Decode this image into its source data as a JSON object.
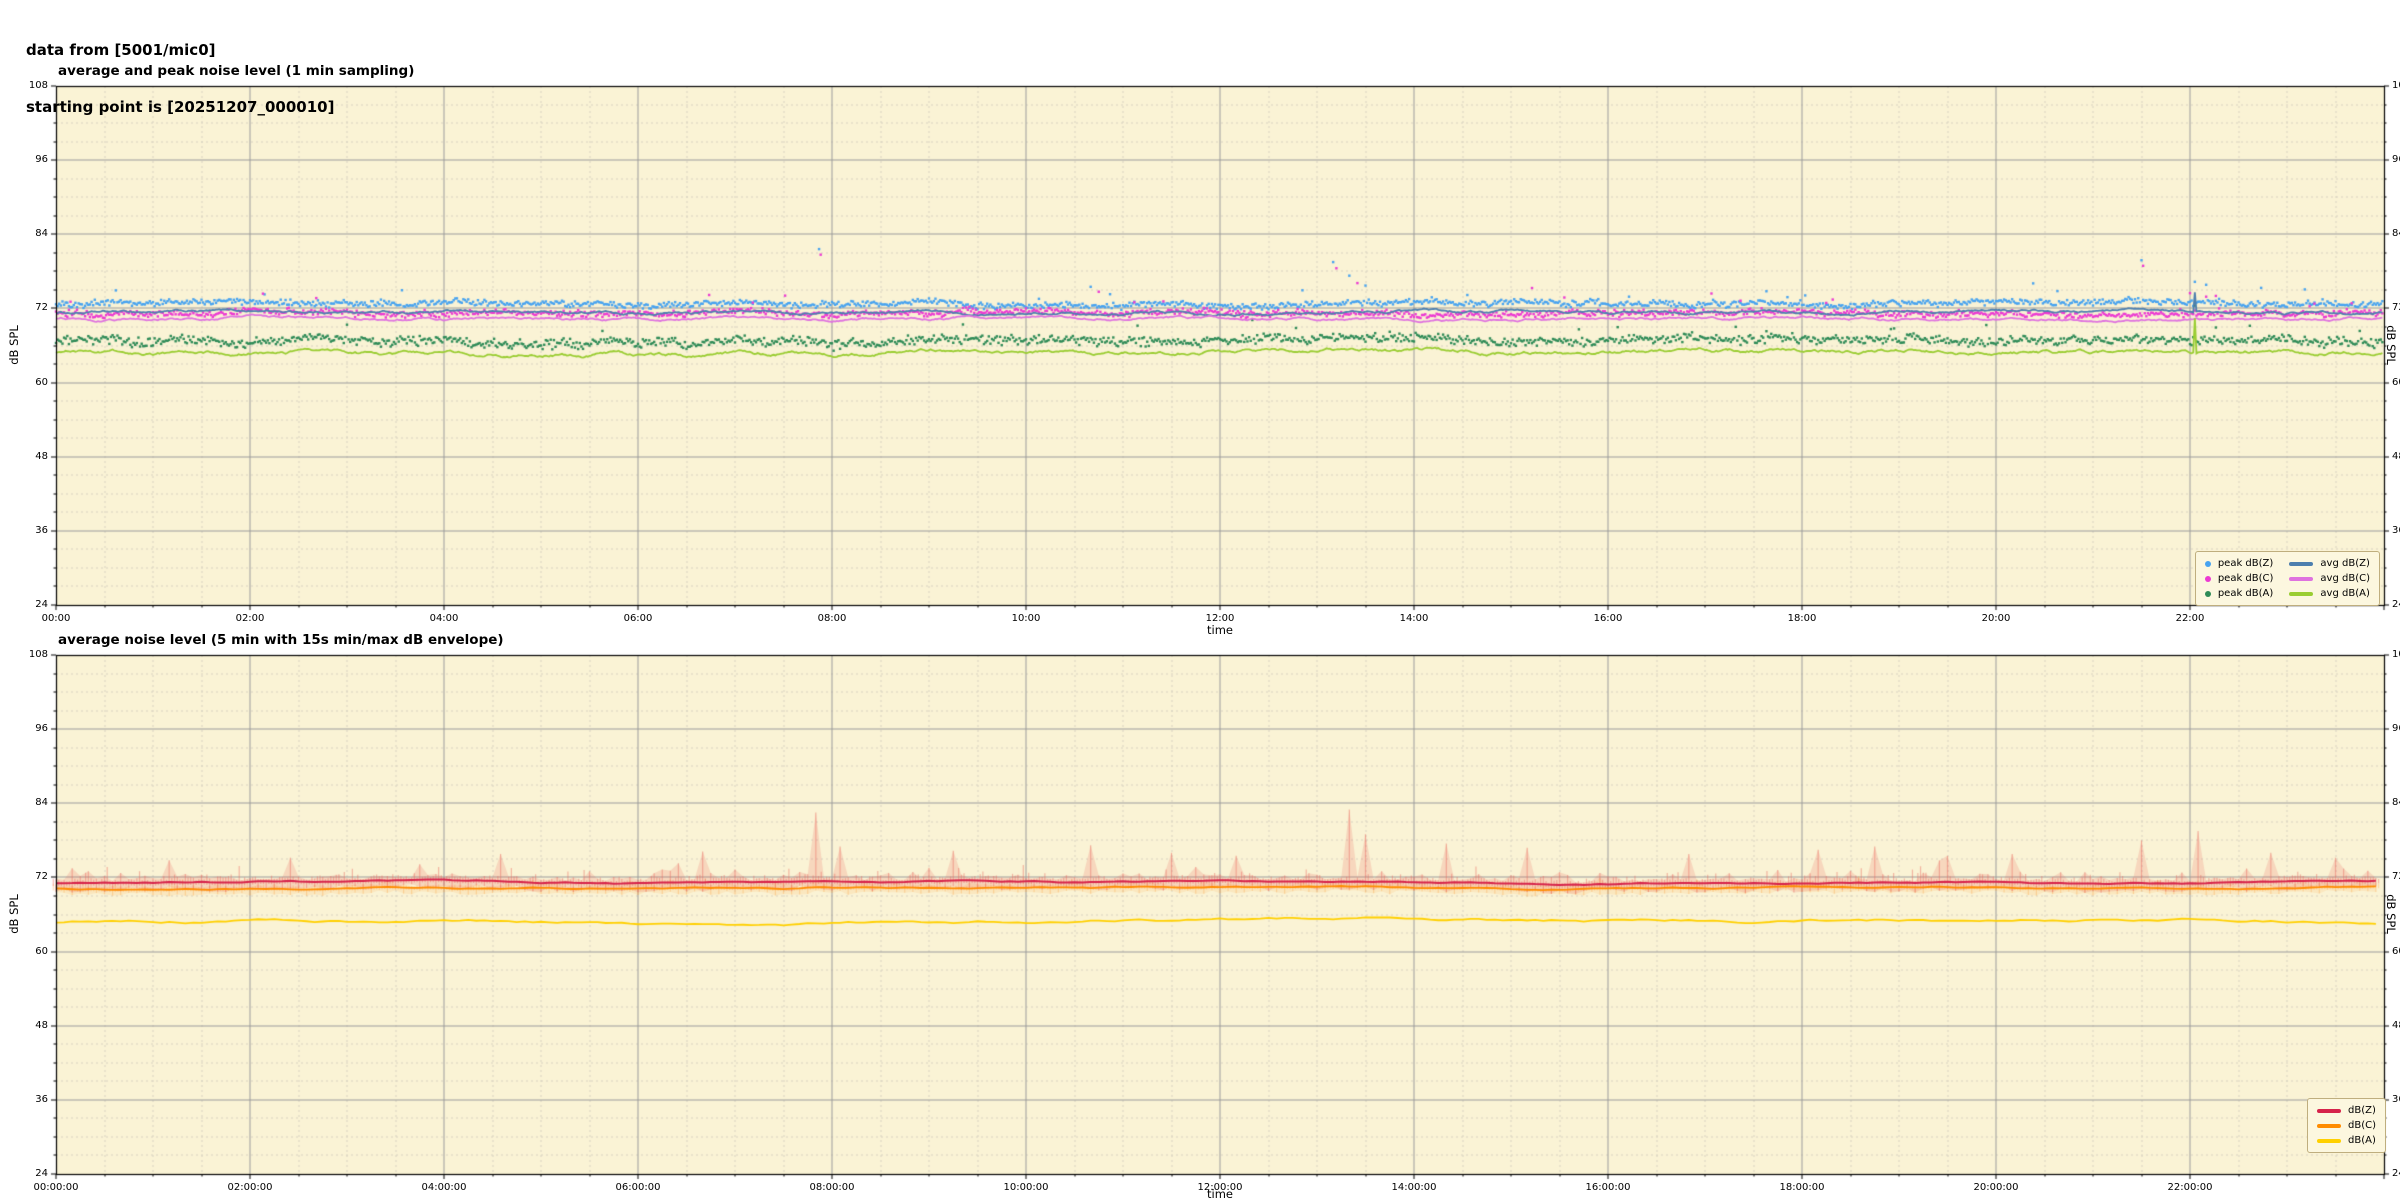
{
  "header": {
    "line1": "data from [5001/mic0]",
    "line2": "starting point is [20251207_000010]"
  },
  "colors": {
    "plot_bg": "#faf3d5",
    "grid_major": "#9b9b9b",
    "grid_minor": "#d8d2c1",
    "axis": "#000000",
    "legend_bg": "#fcf7df",
    "legend_border": "#bfae7e"
  },
  "chart_data": [
    {
      "type": "scatter+line",
      "title": "average and peak noise level (1 min sampling)",
      "xlabel": "time",
      "ylabel_left": "dB SPL",
      "ylabel_right": "dB SPL",
      "xlim_hours": [
        0,
        24
      ],
      "ylim": [
        24,
        108
      ],
      "yticks": [
        24,
        36,
        48,
        60,
        72,
        84,
        96,
        108
      ],
      "ytick_minor_step": 3,
      "xtick_hours": [
        0,
        2,
        4,
        6,
        8,
        10,
        12,
        14,
        16,
        18,
        20,
        22
      ],
      "xtick_labels": [
        "00:00",
        "02:00",
        "04:00",
        "06:00",
        "08:00",
        "10:00",
        "12:00",
        "14:00",
        "16:00",
        "18:00",
        "20:00",
        "22:00"
      ],
      "xtick_minor_minutes": 30,
      "sampling_minutes": 1,
      "grid": "major-solid, minor-dashed",
      "legend_position": "lower right",
      "anchor_hours": [
        0,
        2,
        4,
        6,
        8,
        10,
        12,
        14,
        16,
        18,
        20,
        22,
        24
      ],
      "series": [
        {
          "name": "avg dB(Z)",
          "style": "line",
          "color": "#4d7fae",
          "width": 1.8,
          "wander": 0.22,
          "anchors_db": [
            71.3,
            71.5,
            71.4,
            71.3,
            71.4,
            71.5,
            71.4,
            71.4,
            71.3,
            71.4,
            71.5,
            71.3,
            71.4
          ]
        },
        {
          "name": "avg dB(C)",
          "style": "line",
          "color": "#df72df",
          "width": 1.8,
          "wander": 0.22,
          "anchors_db": [
            70.2,
            70.4,
            70.3,
            70.2,
            70.3,
            70.4,
            70.3,
            70.3,
            70.2,
            70.3,
            70.4,
            70.2,
            70.3
          ]
        },
        {
          "name": "avg dB(A)",
          "style": "line",
          "color": "#9acd32",
          "width": 1.8,
          "wander": 0.3,
          "anchors_db": [
            64.7,
            64.9,
            64.6,
            64.4,
            64.8,
            65.0,
            65.1,
            65.2,
            65.0,
            65.1,
            65.0,
            64.8,
            64.9
          ]
        },
        {
          "name": "peak dB(Z)",
          "style": "scatter",
          "color": "#47a3f0",
          "follows": "avg dB(Z)",
          "offset_db": 1.4,
          "jitter_db": 0.6
        },
        {
          "name": "peak dB(C)",
          "style": "scatter",
          "color": "#ec3ad2",
          "follows": "avg dB(C)",
          "offset_db": 0.9,
          "jitter_db": 0.6
        },
        {
          "name": "peak dB(A)",
          "style": "scatter",
          "color": "#2e8b57",
          "follows": "avg dB(A)",
          "offset_db": 1.9,
          "jitter_db": 0.9
        }
      ],
      "outliers": [
        {
          "series": "peak dB(Z)",
          "time": "07:52",
          "db": 81.6
        },
        {
          "series": "peak dB(C)",
          "time": "07:53",
          "db": 80.7
        },
        {
          "series": "peak dB(Z)",
          "time": "10:40",
          "db": 75.5
        },
        {
          "series": "peak dB(C)",
          "time": "10:45",
          "db": 74.7
        },
        {
          "series": "peak dB(Z)",
          "time": "10:52",
          "db": 74.3
        },
        {
          "series": "peak dB(Z)",
          "time": "13:10",
          "db": 79.5
        },
        {
          "series": "peak dB(C)",
          "time": "13:12",
          "db": 78.5
        },
        {
          "series": "peak dB(Z)",
          "time": "13:20",
          "db": 77.3
        },
        {
          "series": "peak dB(C)",
          "time": "13:25",
          "db": 76.1
        },
        {
          "series": "peak dB(Z)",
          "time": "13:30",
          "db": 75.7
        },
        {
          "series": "peak dB(C)",
          "time": "15:13",
          "db": 75.3
        },
        {
          "series": "peak dB(Z)",
          "time": "16:13",
          "db": 73.9
        },
        {
          "series": "peak dB(Z)",
          "time": "21:30",
          "db": 79.8
        },
        {
          "series": "peak dB(C)",
          "time": "21:31",
          "db": 78.9
        }
      ],
      "line_spikes": [
        {
          "series": "avg dB(Z)",
          "time": "22:03",
          "db": 74.6
        },
        {
          "series": "avg dB(A)",
          "time": "22:03",
          "db": 70.4
        }
      ],
      "legend_columns": [
        [
          "peak dB(Z)",
          "peak dB(C)",
          "peak dB(A)"
        ],
        [
          "avg dB(Z)",
          "avg dB(C)",
          "avg dB(A)"
        ]
      ]
    },
    {
      "type": "line+envelope",
      "title": "average noise level (5 min with 15s min/max dB envelope)",
      "xlabel": "time",
      "ylabel_left": "dB SPL",
      "ylabel_right": "dB SPL",
      "xlim_hours": [
        0,
        24
      ],
      "ylim": [
        24,
        108
      ],
      "yticks": [
        24,
        36,
        48,
        60,
        72,
        84,
        96,
        108
      ],
      "ytick_minor_step": 3,
      "xtick_hours": [
        0,
        2,
        4,
        6,
        8,
        10,
        12,
        14,
        16,
        18,
        20,
        22
      ],
      "xtick_labels": [
        "00:00:00",
        "02:00:00",
        "04:00:00",
        "06:00:00",
        "08:00:00",
        "10:00:00",
        "12:00:00",
        "14:00:00",
        "16:00:00",
        "18:00:00",
        "20:00:00",
        "22:00:00"
      ],
      "xtick_minor_minutes": 30,
      "sampling_minutes": 5,
      "envelope_seconds": 15,
      "grid": "major-solid, minor-dashed",
      "legend_position": "lower right",
      "anchor_hours": [
        0,
        2,
        4,
        6,
        8,
        10,
        12,
        14,
        16,
        18,
        20,
        22,
        24
      ],
      "series": [
        {
          "name": "dB(Z)",
          "style": "line",
          "color": "#d6234b",
          "width": 2.0,
          "wander": 0.18,
          "anchors_db": [
            71.0,
            71.2,
            71.1,
            71.0,
            71.1,
            71.2,
            71.1,
            71.1,
            71.0,
            71.1,
            71.2,
            71.0,
            71.1
          ],
          "envelope": {
            "up": 0.6,
            "down": 1.1,
            "hair": 0.55,
            "fill": "rgba(236,106,95,0.20)",
            "comb": "rgba(236,106,95,0.45)"
          }
        },
        {
          "name": "dB(C)",
          "style": "line",
          "color": "#ff8c00",
          "width": 1.8,
          "wander": 0.18,
          "anchors_db": [
            70.2,
            70.4,
            70.3,
            70.2,
            70.3,
            70.4,
            70.3,
            70.3,
            70.2,
            70.3,
            70.4,
            70.2,
            70.3
          ],
          "envelope": {
            "up": 0.4,
            "down": 0.8,
            "hair": 0.3,
            "fill": "rgba(255,160,60,0.14)",
            "comb": "rgba(255,160,60,0.33)"
          }
        },
        {
          "name": "dB(A)",
          "style": "line",
          "color": "#ffd000",
          "width": 1.8,
          "wander": 0.3,
          "anchors_db": [
            64.8,
            65.0,
            64.7,
            64.5,
            64.8,
            65.1,
            65.2,
            65.3,
            65.1,
            65.2,
            65.0,
            64.9,
            65.0
          ],
          "envelope": null
        }
      ],
      "envelope_spikes": [
        {
          "time": "01:10",
          "db": 74.8
        },
        {
          "time": "02:25",
          "db": 75.2
        },
        {
          "time": "04:35",
          "db": 75.8
        },
        {
          "time": "06:40",
          "db": 76.2
        },
        {
          "time": "07:52",
          "db": 82.5
        },
        {
          "time": "08:05",
          "db": 77.0
        },
        {
          "time": "09:15",
          "db": 76.3
        },
        {
          "time": "10:40",
          "db": 77.2
        },
        {
          "time": "11:30",
          "db": 76.0
        },
        {
          "time": "12:10",
          "db": 75.5
        },
        {
          "time": "13:20",
          "db": 83.0
        },
        {
          "time": "13:32",
          "db": 79.0
        },
        {
          "time": "14:20",
          "db": 77.5
        },
        {
          "time": "15:10",
          "db": 76.8
        },
        {
          "time": "16:50",
          "db": 75.8
        },
        {
          "time": "18:10",
          "db": 76.5
        },
        {
          "time": "18:45",
          "db": 77.0
        },
        {
          "time": "19:30",
          "db": 75.5
        },
        {
          "time": "20:10",
          "db": 75.8
        },
        {
          "time": "21:30",
          "db": 78.0
        },
        {
          "time": "22:03",
          "db": 79.5
        },
        {
          "time": "22:50",
          "db": 76.0
        },
        {
          "time": "23:30",
          "db": 75.2
        }
      ],
      "legend_entries": [
        "dB(Z)",
        "dB(C)",
        "dB(A)"
      ]
    }
  ]
}
